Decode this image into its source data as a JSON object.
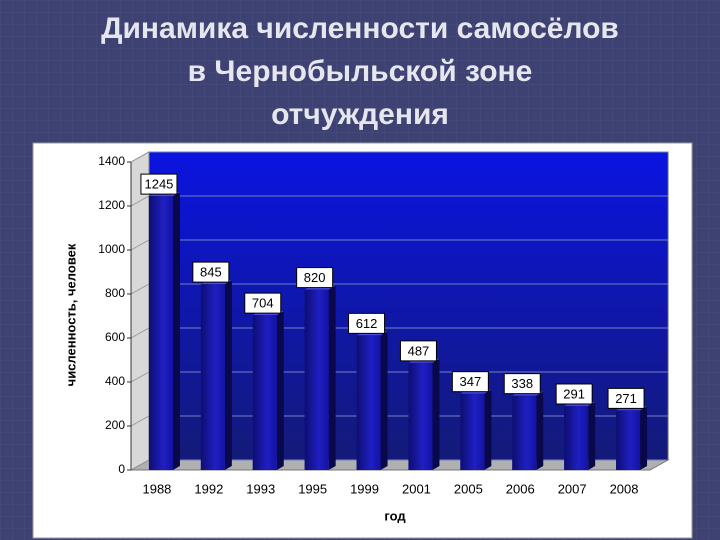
{
  "chart_data": {
    "type": "bar",
    "title": "Динамика численности самосёлов в Чернобыльской зоне отчуждения",
    "categories": [
      "1988",
      "1992",
      "1993",
      "1995",
      "1999",
      "2001",
      "2005",
      "2006",
      "2007",
      "2008"
    ],
    "values": [
      1245,
      845,
      704,
      820,
      612,
      487,
      347,
      338,
      291,
      271
    ],
    "color": "#1c1cb0",
    "ylim": [
      0,
      1400
    ],
    "yticks": [
      0,
      200,
      400,
      600,
      800,
      1000,
      1200,
      1400
    ],
    "grid": true,
    "xlabel": "год",
    "ylabel": "численность, человек"
  }
}
